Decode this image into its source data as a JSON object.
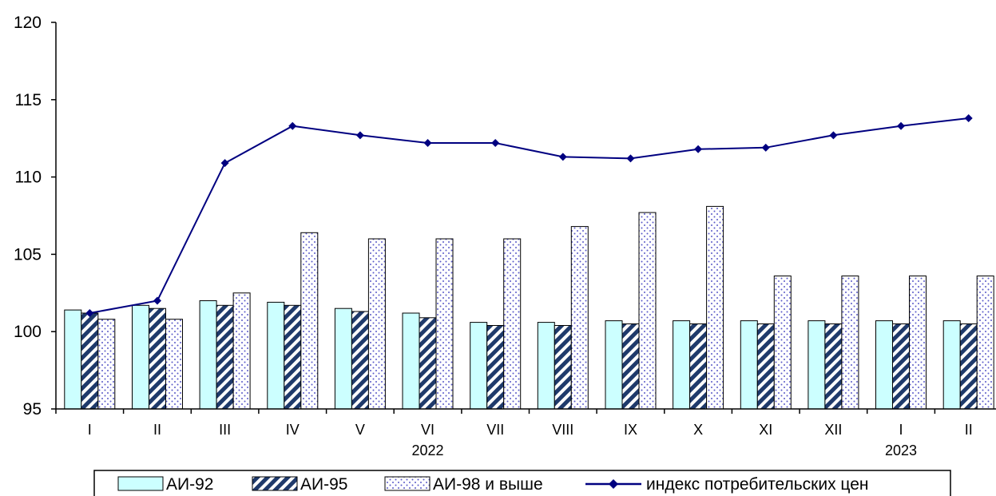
{
  "chart_data": {
    "type": "bar",
    "categories": [
      "I",
      "II",
      "III",
      "IV",
      "V",
      "VI",
      "VII",
      "VIII",
      "IX",
      "X",
      "XI",
      "XII",
      "I",
      "II"
    ],
    "year_labels": [
      {
        "category_index": 5,
        "label": "2022"
      },
      {
        "category_index": 12,
        "label": "2023"
      }
    ],
    "ylim": [
      95,
      120
    ],
    "yticks": [
      95,
      100,
      105,
      110,
      115,
      120
    ],
    "grid": false,
    "legend_position": "bottom",
    "series": [
      {
        "name": "АИ-92",
        "kind": "bar",
        "pattern": "solid",
        "values": [
          101.4,
          101.7,
          102.0,
          101.9,
          101.5,
          101.2,
          100.6,
          100.6,
          100.7,
          100.7,
          100.7,
          100.7,
          100.7,
          100.7
        ]
      },
      {
        "name": "АИ-95",
        "kind": "bar",
        "pattern": "diagonal",
        "values": [
          101.2,
          101.5,
          101.7,
          101.7,
          101.3,
          100.9,
          100.4,
          100.4,
          100.5,
          100.5,
          100.5,
          100.5,
          100.5,
          100.5
        ]
      },
      {
        "name": "АИ-98 и выше",
        "kind": "bar",
        "pattern": "dots",
        "values": [
          100.8,
          100.8,
          102.5,
          106.4,
          106.0,
          106.0,
          106.0,
          106.8,
          107.7,
          108.1,
          103.6,
          103.6,
          103.6,
          103.6
        ]
      },
      {
        "name": "индекс потребительских цен",
        "kind": "line",
        "marker": "diamond",
        "values": [
          101.2,
          102.0,
          110.9,
          113.3,
          112.7,
          112.2,
          112.2,
          111.3,
          111.2,
          111.8,
          111.9,
          112.7,
          113.3,
          113.8
        ]
      }
    ],
    "colors": {
      "ai92_fill": "#ccffff",
      "ai95_stripe": "#1f3a6b",
      "ai98_dot": "#5a5ac8",
      "line": "#000080",
      "frame": "#000000"
    }
  }
}
